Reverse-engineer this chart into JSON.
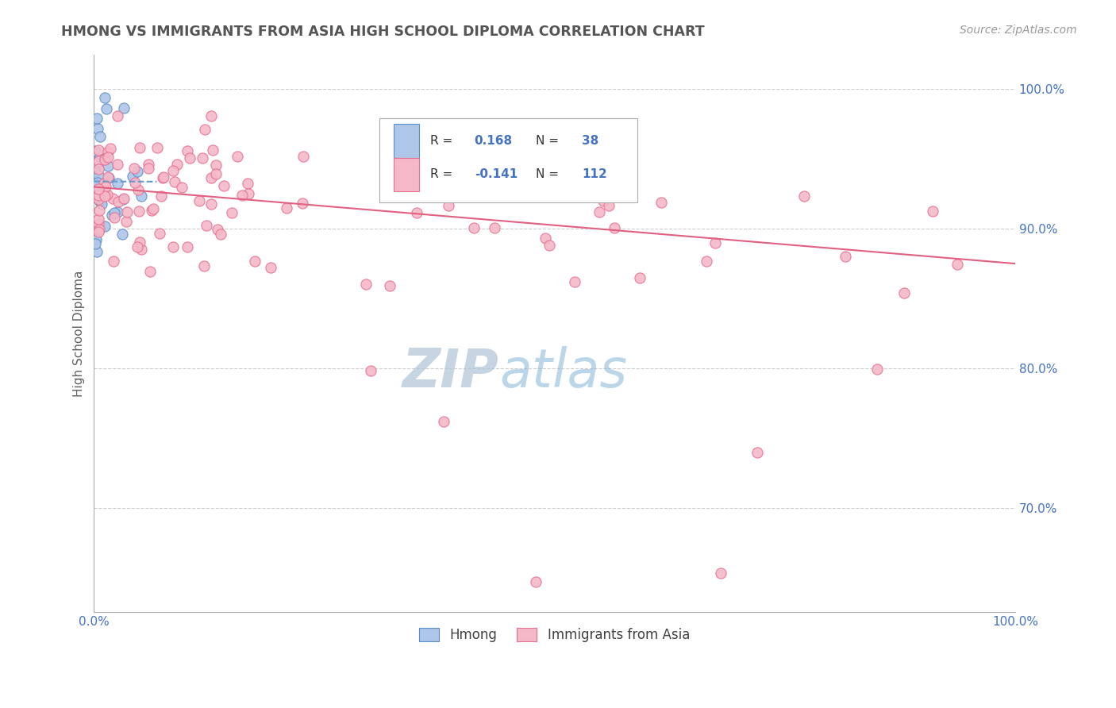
{
  "title": "HMONG VS IMMIGRANTS FROM ASIA HIGH SCHOOL DIPLOMA CORRELATION CHART",
  "source": "Source: ZipAtlas.com",
  "ylabel": "High School Diploma",
  "legend_bottom_left": "Hmong",
  "legend_bottom_right": "Immigrants from Asia",
  "hmong_R": 0.168,
  "hmong_N": 38,
  "asia_R": -0.141,
  "asia_N": 112,
  "background_color": "#ffffff",
  "grid_color": "#c8c8c8",
  "hmong_dot_color": "#aec6e8",
  "hmong_edge_color": "#5b8fc9",
  "asia_dot_color": "#f5b8c8",
  "asia_edge_color": "#e87090",
  "hmong_line_color": "#6699cc",
  "asia_line_color": "#e06080",
  "title_color": "#555555",
  "source_color": "#999999",
  "axis_label_color": "#4472c4",
  "ytick_values": [
    0.7,
    0.8,
    0.9,
    1.0
  ],
  "ytick_labels": [
    "70.0%",
    "80.0%",
    "90.0%",
    "100.0%"
  ],
  "ymin": 0.625,
  "ymax": 1.025,
  "xmin": 0.0,
  "xmax": 1.0,
  "watermark_zip_color": "#b0c4d8",
  "watermark_atlas_color": "#7bafd4"
}
